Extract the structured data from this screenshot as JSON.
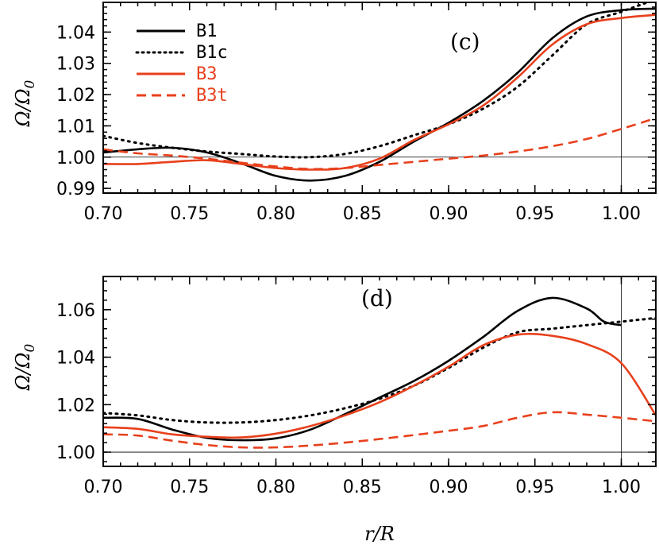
{
  "chart_data": [
    {
      "type": "line",
      "panel_label": "(c)",
      "xlabel": "",
      "ylabel": "Ω/Ω",
      "ylabel_sub": "0",
      "xlim": [
        0.7,
        1.02
      ],
      "ylim": [
        0.9885,
        1.0495
      ],
      "xticks": [
        "0.70",
        "0.75",
        "0.80",
        "0.85",
        "0.90",
        "0.95",
        "1.00"
      ],
      "xtick_values": [
        0.7,
        0.75,
        0.8,
        0.85,
        0.9,
        0.95,
        1.0
      ],
      "yticks": [
        "0.99",
        "1.00",
        "1.01",
        "1.02",
        "1.03",
        "1.04"
      ],
      "ytick_values": [
        0.99,
        1.0,
        1.01,
        1.02,
        1.03,
        1.04
      ],
      "hline": 1.0,
      "vline": 1.0,
      "legend": [
        {
          "label": "B1",
          "color": "#000000",
          "style": "solid"
        },
        {
          "label": "B1c",
          "color": "#000000",
          "style": "dotted"
        },
        {
          "label": "B3",
          "color": "#e8401c",
          "style": "solid"
        },
        {
          "label": "B3t",
          "color": "#e8401c",
          "style": "dashed"
        }
      ],
      "series": [
        {
          "name": "B1",
          "color": "#000000",
          "style": "solid",
          "x": [
            0.7,
            0.72,
            0.74,
            0.76,
            0.78,
            0.8,
            0.82,
            0.84,
            0.86,
            0.88,
            0.9,
            0.92,
            0.94,
            0.96,
            0.98,
            1.0,
            1.02
          ],
          "y": [
            1.0015,
            1.0025,
            1.003,
            1.0015,
            0.998,
            0.994,
            0.9925,
            0.994,
            0.9985,
            1.005,
            1.011,
            1.018,
            1.027,
            1.038,
            1.045,
            1.047,
            1.0475
          ]
        },
        {
          "name": "B1c",
          "color": "#000000",
          "style": "dotted",
          "x": [
            0.7,
            0.72,
            0.74,
            0.76,
            0.78,
            0.8,
            0.82,
            0.84,
            0.86,
            0.88,
            0.9,
            0.92,
            0.94,
            0.96,
            0.98,
            1.0,
            1.02
          ],
          "y": [
            1.0068,
            1.0045,
            1.003,
            1.0018,
            1.001,
            1.0002,
            1.0,
            1.001,
            1.0035,
            1.007,
            1.0105,
            1.0155,
            1.0225,
            1.0325,
            1.0425,
            1.0465,
            1.0505
          ]
        },
        {
          "name": "B3",
          "color": "#e8401c",
          "style": "solid",
          "x": [
            0.7,
            0.72,
            0.74,
            0.76,
            0.78,
            0.8,
            0.82,
            0.84,
            0.86,
            0.88,
            0.9,
            0.92,
            0.94,
            0.96,
            0.98,
            1.0,
            1.02
          ],
          "y": [
            0.9978,
            0.9978,
            0.9985,
            0.999,
            0.9978,
            0.9965,
            0.996,
            0.9965,
            0.9995,
            1.0055,
            1.0105,
            1.0165,
            1.0255,
            1.036,
            1.0425,
            1.0445,
            1.0455
          ]
        },
        {
          "name": "B3t",
          "color": "#e8401c",
          "style": "dashed",
          "x": [
            0.7,
            0.72,
            0.74,
            0.76,
            0.78,
            0.8,
            0.82,
            0.84,
            0.86,
            0.88,
            0.9,
            0.92,
            0.94,
            0.96,
            0.98,
            1.0,
            1.02
          ],
          "y": [
            1.0025,
            1.0012,
            1.0005,
            0.9995,
            0.9982,
            0.997,
            0.9962,
            0.9965,
            0.9975,
            0.9985,
            0.9995,
            1.0005,
            1.0018,
            1.0035,
            1.0058,
            1.009,
            1.0125
          ]
        }
      ]
    },
    {
      "type": "line",
      "panel_label": "(d)",
      "xlabel": "r/R",
      "ylabel": "Ω/Ω",
      "ylabel_sub": "0",
      "xlim": [
        0.7,
        1.02
      ],
      "ylim": [
        0.994,
        1.074
      ],
      "xticks": [
        "0.70",
        "0.75",
        "0.80",
        "0.85",
        "0.90",
        "0.95",
        "1.00"
      ],
      "xtick_values": [
        0.7,
        0.75,
        0.8,
        0.85,
        0.9,
        0.95,
        1.0
      ],
      "yticks": [
        "1.00",
        "1.02",
        "1.04",
        "1.06"
      ],
      "ytick_values": [
        1.0,
        1.02,
        1.04,
        1.06
      ],
      "hline": 1.0,
      "vline": 1.0,
      "series": [
        {
          "name": "B1",
          "color": "#000000",
          "style": "solid",
          "x": [
            0.7,
            0.72,
            0.74,
            0.76,
            0.78,
            0.8,
            0.82,
            0.84,
            0.86,
            0.88,
            0.9,
            0.92,
            0.94,
            0.96,
            0.98,
            0.99,
            1.0
          ],
          "y": [
            1.0145,
            1.014,
            1.0095,
            1.006,
            1.005,
            1.0058,
            1.0095,
            1.016,
            1.023,
            1.03,
            1.0385,
            1.0485,
            1.0595,
            1.065,
            1.0605,
            1.055,
            1.0535
          ]
        },
        {
          "name": "B1c",
          "color": "#000000",
          "style": "dotted",
          "x": [
            0.7,
            0.72,
            0.74,
            0.76,
            0.78,
            0.8,
            0.82,
            0.84,
            0.86,
            0.88,
            0.9,
            0.92,
            0.94,
            0.96,
            0.98,
            1.0,
            1.02
          ],
          "y": [
            1.0165,
            1.0155,
            1.0135,
            1.0125,
            1.0125,
            1.0135,
            1.0155,
            1.0185,
            1.0225,
            1.028,
            1.0355,
            1.044,
            1.0505,
            1.052,
            1.0535,
            1.055,
            1.0565
          ]
        },
        {
          "name": "B3",
          "color": "#e8401c",
          "style": "solid",
          "x": [
            0.7,
            0.72,
            0.74,
            0.76,
            0.78,
            0.8,
            0.82,
            0.84,
            0.86,
            0.88,
            0.9,
            0.92,
            0.94,
            0.96,
            0.98,
            1.0,
            1.02
          ],
          "y": [
            1.0105,
            1.0098,
            1.0075,
            1.0065,
            1.0062,
            1.0078,
            1.011,
            1.0155,
            1.021,
            1.028,
            1.036,
            1.045,
            1.0495,
            1.049,
            1.0455,
            1.0375,
            1.0155
          ]
        },
        {
          "name": "B3t",
          "color": "#e8401c",
          "style": "dashed",
          "x": [
            0.7,
            0.72,
            0.74,
            0.76,
            0.78,
            0.8,
            0.82,
            0.84,
            0.86,
            0.88,
            0.9,
            0.92,
            0.94,
            0.96,
            0.98,
            1.0,
            1.02
          ],
          "y": [
            1.0075,
            1.007,
            1.0048,
            1.003,
            1.002,
            1.002,
            1.0028,
            1.004,
            1.0055,
            1.0072,
            1.009,
            1.011,
            1.0145,
            1.0168,
            1.0158,
            1.0145,
            1.013
          ]
        }
      ]
    }
  ]
}
